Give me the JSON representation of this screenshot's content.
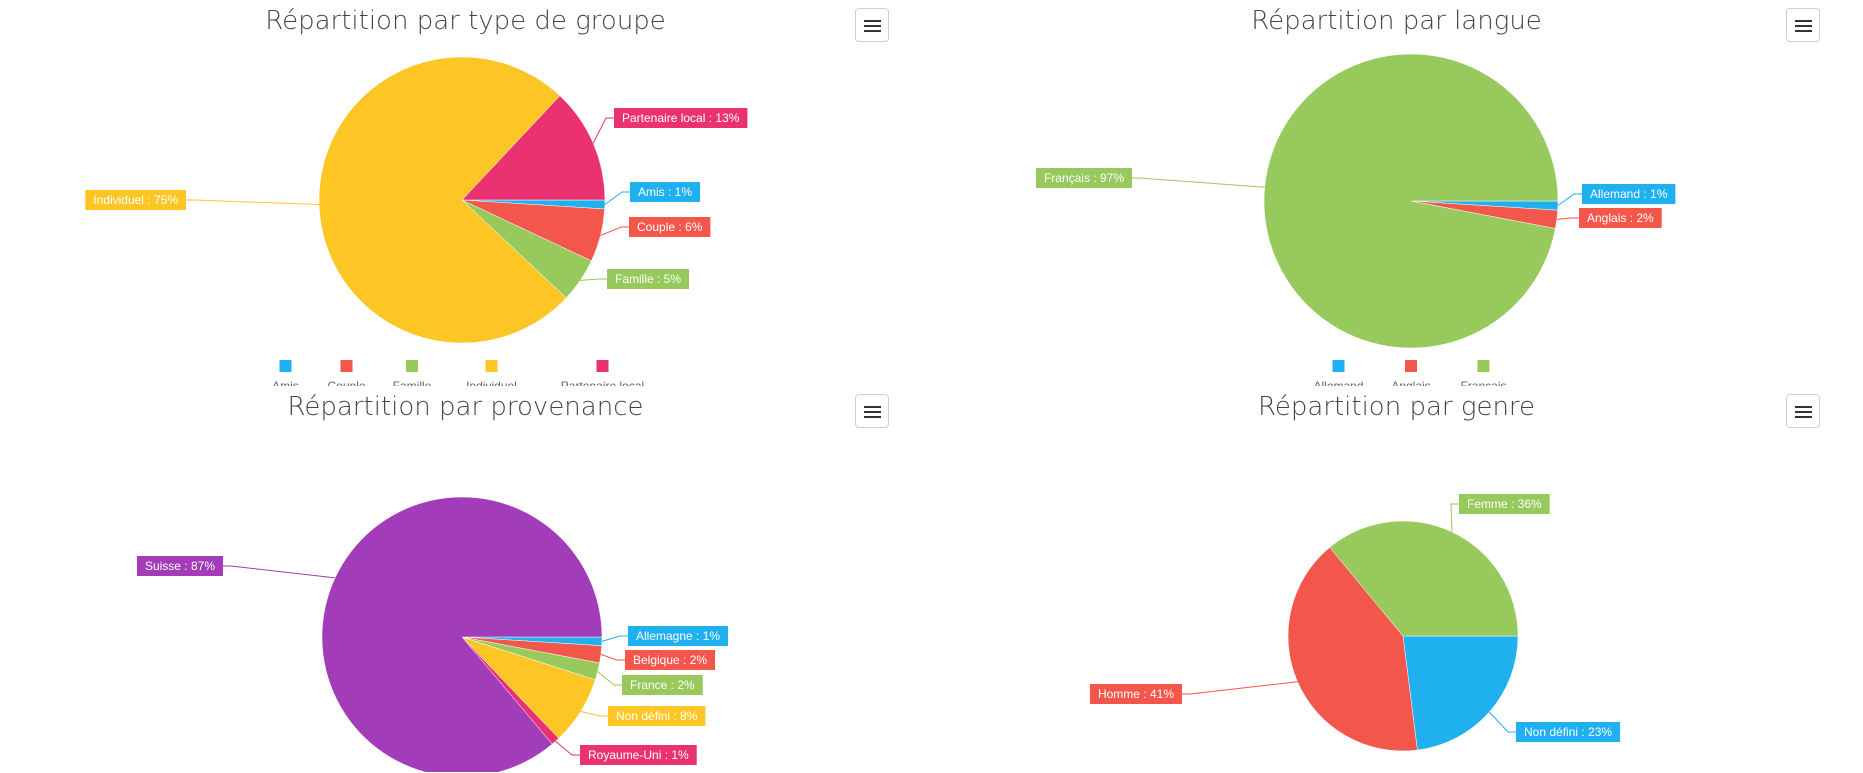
{
  "chart_data": [
    {
      "type": "pie",
      "title": "Répartition par type de groupe",
      "slices": [
        {
          "label": "Amis",
          "value": 1,
          "callout": "Amis : 1%",
          "color": "#1fb0f0"
        },
        {
          "label": "Couple",
          "value": 6,
          "callout": "Couple : 6%",
          "color": "#f3564b"
        },
        {
          "label": "Famille",
          "value": 5,
          "callout": "Famille : 5%",
          "color": "#97c95c"
        },
        {
          "label": "Individuel",
          "value": 75,
          "callout": "Individuel : 75%",
          "color": "#fec624"
        },
        {
          "label": "Partenaire local",
          "value": 13,
          "callout": "Partenaire local : 13%",
          "color": "#ea3270"
        }
      ],
      "legend": [
        "Amis",
        "Couple",
        "Famille",
        "Individuel",
        "Partenaire local"
      ],
      "legend_position": "bottom"
    },
    {
      "type": "pie",
      "title": "Répartition par langue",
      "slices": [
        {
          "label": "Allemand",
          "value": 1,
          "callout": "Allemand : 1%",
          "color": "#1fb0f0"
        },
        {
          "label": "Anglais",
          "value": 2,
          "callout": "Anglais : 2%",
          "color": "#f3564b"
        },
        {
          "label": "Français",
          "value": 97,
          "callout": "Français : 97%",
          "color": "#97c95c"
        }
      ],
      "legend": [
        "Allemand",
        "Anglais",
        "Français"
      ],
      "legend_position": "bottom"
    },
    {
      "type": "pie",
      "title": "Répartition par provenance",
      "slices": [
        {
          "label": "Allemagne",
          "value": 1,
          "callout": "Allemagne : 1%",
          "color": "#1fb0f0"
        },
        {
          "label": "Belgique",
          "value": 2,
          "callout": "Belgique : 2%",
          "color": "#f3564b"
        },
        {
          "label": "France",
          "value": 2,
          "callout": "France : 2%",
          "color": "#97c95c"
        },
        {
          "label": "Non défini",
          "value": 8,
          "callout": "Non défini : 8%",
          "color": "#fec624"
        },
        {
          "label": "Royaume-Uni",
          "value": 1,
          "callout": "Royaume-Uni : 1%",
          "color": "#ea3270"
        },
        {
          "label": "Suisse",
          "value": 87,
          "callout": "Suisse : 87%",
          "color": "#a23cb8"
        }
      ],
      "legend": [],
      "legend_position": "none"
    },
    {
      "type": "pie",
      "title": "Répartition par genre",
      "slices": [
        {
          "label": "Non défini",
          "value": 23,
          "callout": "Non défini : 23%",
          "color": "#1fb0f0"
        },
        {
          "label": "Homme",
          "value": 41,
          "callout": "Homme : 41%",
          "color": "#f3564b"
        },
        {
          "label": "Femme",
          "value": 36,
          "callout": "Femme : 36%",
          "color": "#97c95c"
        }
      ],
      "legend": [],
      "legend_position": "none"
    }
  ],
  "ui": {
    "menu_icon": "hamburger-menu-icon"
  }
}
